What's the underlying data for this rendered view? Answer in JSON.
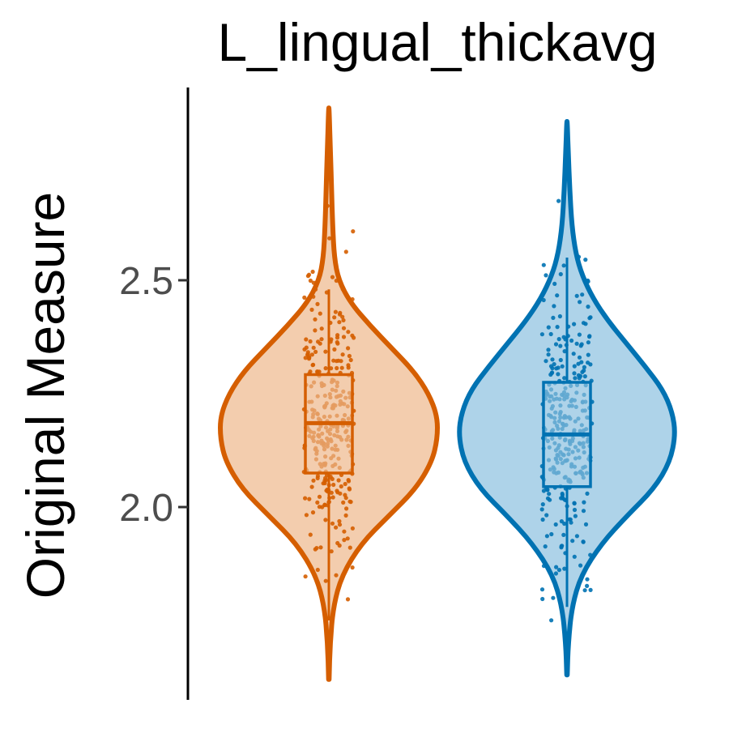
{
  "chart_data": {
    "type": "violin",
    "title": "L_lingual_thickavg",
    "ylabel": "Original Measure",
    "xlabel": "",
    "ylim": [
      1.6,
      2.9
    ],
    "yticks": [
      {
        "value": 2.0,
        "label": "2.0"
      },
      {
        "value": 2.5,
        "label": "2.5"
      }
    ],
    "groups": [
      {
        "color": "#D55E00",
        "fill": "#F3CDAE",
        "min": 1.62,
        "max": 2.88,
        "q1": 2.075,
        "median": 2.185,
        "q3": 2.292,
        "whisker_low": 1.75,
        "whisker_high": 2.48,
        "density": [
          [
            1.62,
            0.002
          ],
          [
            1.7,
            0.012
          ],
          [
            1.78,
            0.04
          ],
          [
            1.85,
            0.12
          ],
          [
            1.92,
            0.3
          ],
          [
            1.98,
            0.55
          ],
          [
            2.04,
            0.8
          ],
          [
            2.1,
            0.95
          ],
          [
            2.15,
            1.0
          ],
          [
            2.2,
            1.0
          ],
          [
            2.25,
            0.92
          ],
          [
            2.3,
            0.78
          ],
          [
            2.35,
            0.58
          ],
          [
            2.4,
            0.38
          ],
          [
            2.45,
            0.2
          ],
          [
            2.5,
            0.09
          ],
          [
            2.55,
            0.05
          ],
          [
            2.62,
            0.035
          ],
          [
            2.7,
            0.025
          ],
          [
            2.78,
            0.015
          ],
          [
            2.88,
            0.002
          ]
        ]
      },
      {
        "color": "#0072B2",
        "fill": "#AED3E9",
        "min": 1.63,
        "max": 2.85,
        "q1": 2.045,
        "median": 2.16,
        "q3": 2.275,
        "whisker_low": 1.78,
        "whisker_high": 2.55,
        "density": [
          [
            1.63,
            0.002
          ],
          [
            1.7,
            0.012
          ],
          [
            1.78,
            0.045
          ],
          [
            1.85,
            0.13
          ],
          [
            1.92,
            0.32
          ],
          [
            1.98,
            0.55
          ],
          [
            2.04,
            0.8
          ],
          [
            2.1,
            0.95
          ],
          [
            2.16,
            1.0
          ],
          [
            2.21,
            0.97
          ],
          [
            2.26,
            0.88
          ],
          [
            2.31,
            0.72
          ],
          [
            2.36,
            0.55
          ],
          [
            2.41,
            0.38
          ],
          [
            2.46,
            0.24
          ],
          [
            2.51,
            0.14
          ],
          [
            2.56,
            0.08
          ],
          [
            2.62,
            0.045
          ],
          [
            2.7,
            0.025
          ],
          [
            2.78,
            0.012
          ],
          [
            2.85,
            0.002
          ]
        ]
      }
    ]
  }
}
